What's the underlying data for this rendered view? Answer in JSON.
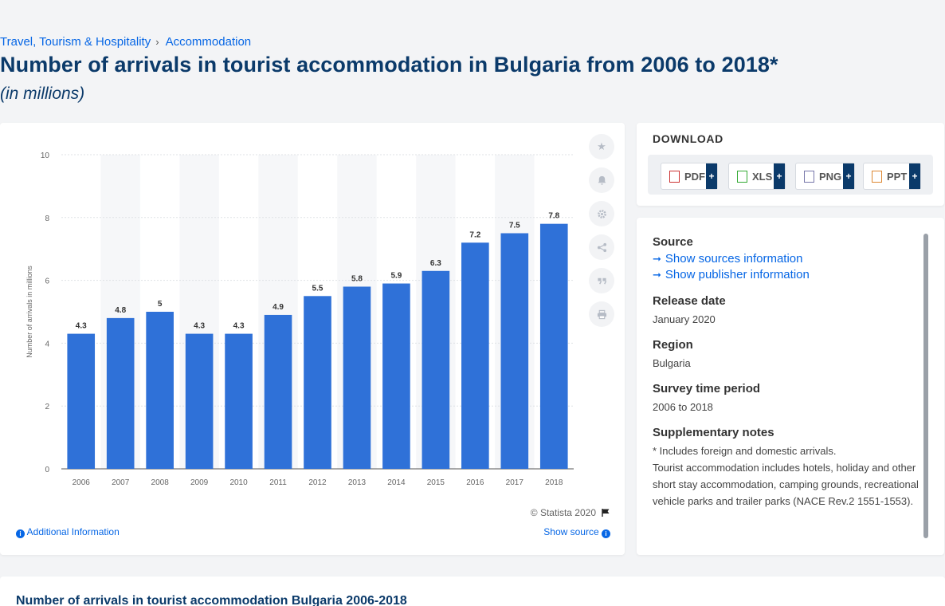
{
  "breadcrumb": {
    "items": [
      "Travel, Tourism & Hospitality",
      "Accommodation"
    ],
    "separator": "›"
  },
  "title": "Number of arrivals in tourist accommodation in Bulgaria from 2006 to 2018*",
  "subtitle": "(in millions)",
  "chart_data": {
    "type": "bar",
    "categories": [
      "2006",
      "2007",
      "2008",
      "2009",
      "2010",
      "2011",
      "2012",
      "2013",
      "2014",
      "2015",
      "2016",
      "2017",
      "2018"
    ],
    "values": [
      4.3,
      4.8,
      5,
      4.3,
      4.3,
      4.9,
      5.5,
      5.8,
      5.9,
      6.3,
      7.2,
      7.5,
      7.8
    ],
    "ylabel": "Number of arrivals in millions",
    "ylim": [
      0,
      10
    ],
    "yticks": [
      0,
      2,
      4,
      6,
      8,
      10
    ],
    "grid": true,
    "bar_color": "#2f71d8",
    "stripe_color": "#f6f7f9"
  },
  "tools": [
    "star-icon",
    "bell-icon",
    "gear-icon",
    "share-icon",
    "quote-icon",
    "print-icon"
  ],
  "copyright": "© Statista 2020",
  "additional_info": "Additional Information",
  "show_source": "Show source",
  "download": {
    "label": "DOWNLOAD",
    "buttons": [
      "PDF",
      "XLS",
      "PNG",
      "PPT"
    ],
    "plus": "+"
  },
  "meta": {
    "source_head": "Source",
    "sources_link": "Show sources information",
    "publisher_link": "Show publisher information",
    "release_head": "Release date",
    "release_val": "January 2020",
    "region_head": "Region",
    "region_val": "Bulgaria",
    "survey_head": "Survey time period",
    "survey_val": "2006 to 2018",
    "notes_head": "Supplementary notes",
    "notes_val1": "* Includes foreign and domestic arrivals.",
    "notes_val2": "Tourist accommodation includes hotels, holiday and other short stay accommodation, camping grounds, recreational vehicle parks and trailer parks (NACE Rev.2 1551-1553)."
  },
  "bottom_title": "Number of arrivals in tourist accommodation Bulgaria 2006-2018"
}
